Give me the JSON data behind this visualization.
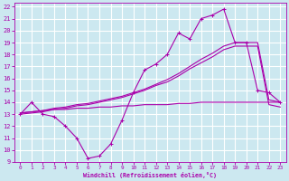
{
  "xlabel": "Windchill (Refroidissement éolien,°C)",
  "background_color": "#cce8f0",
  "line_color": "#aa00aa",
  "grid_color": "#ffffff",
  "xlim": [
    -0.5,
    23.5
  ],
  "ylim": [
    9,
    22.3
  ],
  "xticks": [
    0,
    1,
    2,
    3,
    4,
    5,
    6,
    7,
    8,
    9,
    10,
    11,
    12,
    13,
    14,
    15,
    16,
    17,
    18,
    19,
    20,
    21,
    22,
    23
  ],
  "yticks": [
    9,
    10,
    11,
    12,
    13,
    14,
    15,
    16,
    17,
    18,
    19,
    20,
    21,
    22
  ],
  "series_zigzag_x": [
    0,
    1,
    2,
    3,
    4,
    5,
    6,
    7,
    8,
    9,
    10,
    11,
    12,
    13,
    14,
    15,
    16,
    17,
    18,
    19,
    20,
    21,
    22,
    23
  ],
  "series_zigzag_y": [
    13.0,
    14.0,
    13.0,
    12.8,
    12.0,
    11.0,
    9.3,
    9.5,
    10.5,
    12.5,
    14.8,
    16.7,
    17.2,
    18.0,
    19.8,
    19.3,
    21.0,
    21.3,
    21.8,
    19.0,
    19.0,
    15.0,
    14.8,
    14.0
  ],
  "series_line1_x": [
    0,
    1,
    2,
    3,
    4,
    5,
    6,
    7,
    8,
    9,
    10,
    11,
    12,
    13,
    14,
    15,
    16,
    17,
    18,
    19,
    20,
    21,
    22,
    23
  ],
  "series_line1_y": [
    13.1,
    13.2,
    13.3,
    13.5,
    13.6,
    13.8,
    13.9,
    14.1,
    14.3,
    14.5,
    14.8,
    15.1,
    15.5,
    15.9,
    16.4,
    17.0,
    17.6,
    18.1,
    18.7,
    19.0,
    19.0,
    19.0,
    14.2,
    14.0
  ],
  "series_line2_x": [
    0,
    1,
    2,
    3,
    4,
    5,
    6,
    7,
    8,
    9,
    10,
    11,
    12,
    13,
    14,
    15,
    16,
    17,
    18,
    19,
    20,
    21,
    22,
    23
  ],
  "series_line2_y": [
    13.0,
    13.1,
    13.2,
    13.4,
    13.5,
    13.7,
    13.8,
    14.0,
    14.2,
    14.4,
    14.7,
    15.0,
    15.4,
    15.7,
    16.2,
    16.8,
    17.3,
    17.8,
    18.4,
    18.7,
    18.7,
    18.7,
    13.8,
    13.6
  ],
  "series_flat_x": [
    0,
    1,
    2,
    3,
    4,
    5,
    6,
    7,
    8,
    9,
    10,
    11,
    12,
    13,
    14,
    15,
    16,
    17,
    18,
    19,
    20,
    21,
    22,
    23
  ],
  "series_flat_y": [
    13.1,
    13.2,
    13.3,
    13.4,
    13.4,
    13.5,
    13.5,
    13.6,
    13.6,
    13.7,
    13.7,
    13.8,
    13.8,
    13.8,
    13.9,
    13.9,
    14.0,
    14.0,
    14.0,
    14.0,
    14.0,
    14.0,
    14.0,
    14.0
  ]
}
